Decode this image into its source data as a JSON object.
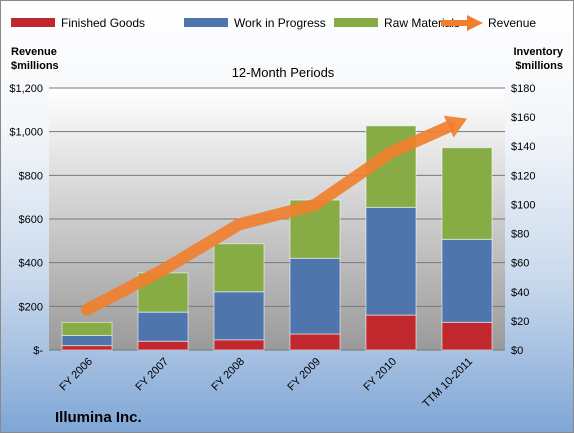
{
  "chart_data": {
    "type": "bar",
    "stacked": true,
    "subtitle": "12-Month Periods",
    "company": "Illumina Inc.",
    "categories": [
      "FY 2006",
      "FY 2007",
      "FY 2008",
      "FY 2009",
      "FY 2010",
      "TTM 10-2011"
    ],
    "left_axis": {
      "title_line1": "Revenue",
      "title_line2": "$millions",
      "ylim": [
        0,
        1200
      ],
      "ticks": [
        0,
        200,
        400,
        600,
        800,
        1000,
        1200
      ],
      "tick_labels": [
        "$-",
        "$200",
        "$400",
        "$600",
        "$800",
        "$1,000",
        "$1,200"
      ]
    },
    "right_axis": {
      "title_line1": "Inventory",
      "title_line2": "$millions",
      "ylim": [
        0,
        180
      ],
      "ticks": [
        0,
        20,
        40,
        60,
        80,
        100,
        120,
        140,
        160,
        180
      ],
      "tick_labels": [
        "$0",
        "$20",
        "$40",
        "$60",
        "$80",
        "$100",
        "$120",
        "$140",
        "$160",
        "$180"
      ]
    },
    "series": [
      {
        "name": "Finished Goods",
        "axis": "right",
        "color": "#c0282d",
        "values": [
          3,
          6,
          7,
          11,
          24,
          19
        ]
      },
      {
        "name": "Work in Progress",
        "axis": "right",
        "color": "#4f75ad",
        "values": [
          7,
          20,
          33,
          52,
          74,
          57
        ]
      },
      {
        "name": "Raw Materials",
        "axis": "right",
        "color": "#88ac45",
        "values": [
          9,
          27,
          33,
          40,
          56,
          63
        ]
      },
      {
        "name": "Revenue",
        "axis": "left",
        "type": "line",
        "color": "#f07f2f",
        "values": [
          185,
          367,
          575,
          665,
          905,
          1060
        ]
      }
    ],
    "grid": true,
    "legend_position": "top"
  }
}
